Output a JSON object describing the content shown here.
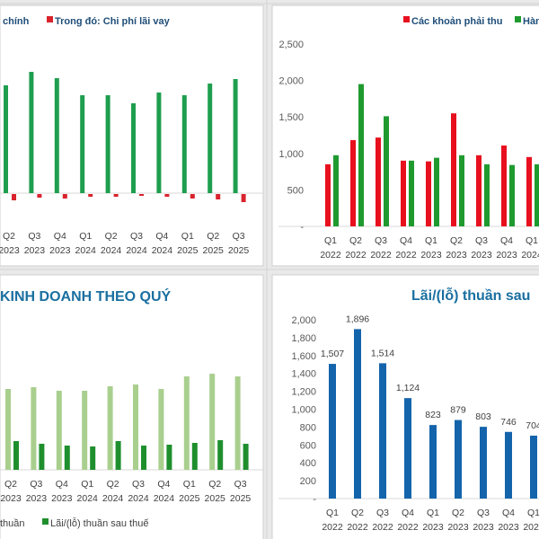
{
  "chart_data": [
    {
      "type": "bar",
      "legend": [
        "chính",
        "Trong đó: Chi phí lãi vay"
      ],
      "legend_placement": "top",
      "categories": [
        [
          "Q2",
          "2023"
        ],
        [
          "Q3",
          "2023"
        ],
        [
          "Q4",
          "2023"
        ],
        [
          "Q1",
          "2024"
        ],
        [
          "Q2",
          "2024"
        ],
        [
          "Q3",
          "2024"
        ],
        [
          "Q4",
          "2024"
        ],
        [
          "Q1",
          "2025"
        ],
        [
          "Q2",
          "2025"
        ],
        [
          "Q3",
          "2025"
        ]
      ],
      "series": [
        {
          "name": "chính",
          "color": "#1e9e4e",
          "values": [
            120,
            135,
            128,
            109,
            109,
            100,
            112,
            109,
            122,
            127
          ]
        },
        {
          "name": "Trong đó: Chi phí lãi vay",
          "color": "#d9232d",
          "values": [
            -7,
            -4,
            -5,
            -3,
            -3,
            -1,
            -3,
            -5,
            -6,
            -9
          ]
        }
      ],
      "grid": false
    },
    {
      "type": "bar",
      "legend": [
        "Các khoản phải thu",
        "Hàn"
      ],
      "legend_placement": "top",
      "yticks": [
        "2,500",
        "2,000",
        "1,500",
        "1,000",
        "500",
        "-"
      ],
      "ylim": [
        0,
        2500
      ],
      "categories": [
        [
          "Q1",
          "2022"
        ],
        [
          "Q2",
          "2022"
        ],
        [
          "Q3",
          "2022"
        ],
        [
          "Q4",
          "2022"
        ],
        [
          "Q1",
          "2023"
        ],
        [
          "Q2",
          "2023"
        ],
        [
          "Q3",
          "2023"
        ],
        [
          "Q4",
          "2023"
        ],
        [
          "Q1",
          "2024"
        ]
      ],
      "series": [
        {
          "name": "Các khoản phải thu",
          "color": "#e8101e",
          "values": [
            860,
            1195,
            1230,
            910,
            900,
            1565,
            985,
            1120,
            960
          ]
        },
        {
          "name": "Hàn",
          "color": "#1f9a2f",
          "values": [
            985,
            1970,
            1525,
            910,
            950,
            985,
            860,
            850,
            860
          ]
        }
      ],
      "grid": false
    },
    {
      "type": "bar",
      "title": "KINH DOANH THEO QUÝ",
      "legend": [
        "thuần",
        "Lãi/(lỗ) thuần sau thuế"
      ],
      "legend_placement": "bottom",
      "categories": [
        [
          "Q2",
          "2023"
        ],
        [
          "Q3",
          "2023"
        ],
        [
          "Q4",
          "2023"
        ],
        [
          "Q1",
          "2024"
        ],
        [
          "Q2",
          "2024"
        ],
        [
          "Q3",
          "2024"
        ],
        [
          "Q4",
          "2024"
        ],
        [
          "Q1",
          "2025"
        ],
        [
          "Q2",
          "2025"
        ],
        [
          "Q3",
          "2025"
        ]
      ],
      "series": [
        {
          "name": "thuần",
          "color": "#a9cf8e",
          "values": [
            90,
            92,
            88,
            88,
            93,
            95,
            90,
            104,
            107,
            104
          ]
        },
        {
          "name": "Lãi/(lỗ) thuần sau thuế",
          "color": "#1f8f2e",
          "values": [
            32,
            29,
            27,
            26,
            32,
            27,
            28,
            30,
            33,
            29
          ]
        }
      ],
      "grid": false
    },
    {
      "type": "bar",
      "title": "Lãi/(lỗ) thuần sau",
      "yticks": [
        "2,000",
        "1,800",
        "1,600",
        "1,400",
        "1,200",
        "1,000",
        "800",
        "600",
        "400",
        "200",
        "-"
      ],
      "ylim": [
        0,
        2000
      ],
      "categories": [
        [
          "Q1",
          "2022"
        ],
        [
          "Q2",
          "2022"
        ],
        [
          "Q3",
          "2022"
        ],
        [
          "Q4",
          "2022"
        ],
        [
          "Q1",
          "2023"
        ],
        [
          "Q2",
          "2023"
        ],
        [
          "Q3",
          "2023"
        ],
        [
          "Q4",
          "2023"
        ],
        [
          "Q1",
          "2024"
        ]
      ],
      "series": [
        {
          "color": "#1464ac",
          "values": [
            1507,
            1896,
            1514,
            1124,
            823,
            879,
            803,
            746,
            704
          ],
          "labels": [
            "1,507",
            "1,896",
            "1,514",
            "1,124",
            "823",
            "879",
            "803",
            "746",
            "704"
          ]
        }
      ],
      "grid": false
    }
  ]
}
